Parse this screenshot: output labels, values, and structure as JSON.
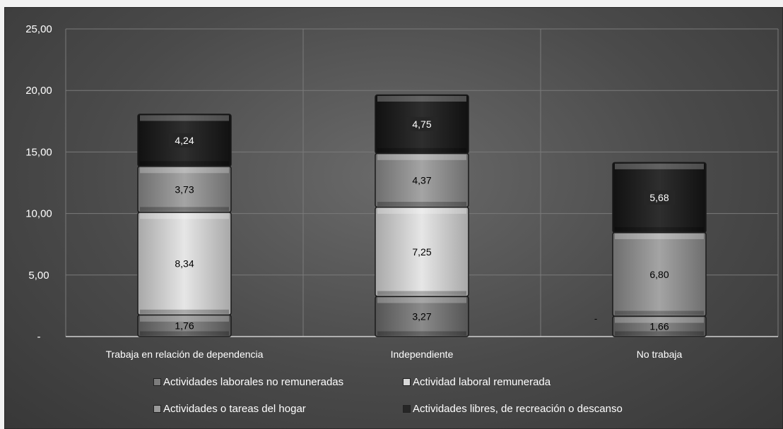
{
  "chart_data": {
    "type": "bar",
    "stacked": true,
    "categories": [
      "Trabaja en relación de dependencia",
      "Independiente",
      "No trabaja"
    ],
    "series": [
      {
        "name": "Actividades laborales no remuneradas",
        "values": [
          1.76,
          3.27,
          1.66
        ],
        "labels": [
          "1,76",
          "3,27",
          "1,66"
        ],
        "color": "#7c7c7c"
      },
      {
        "name": "Actividad laboral remunerada",
        "values": [
          8.34,
          7.25,
          0
        ],
        "labels": [
          "8,34",
          "7,25",
          ""
        ],
        "color": "#d8d8d8"
      },
      {
        "name": "Actividades o tareas del hogar",
        "values": [
          3.73,
          4.37,
          6.8
        ],
        "labels": [
          "3,73",
          "4,37",
          "6,80"
        ],
        "color": "#9a9a9a"
      },
      {
        "name": "Actividades libres, de recreación o descanso",
        "values": [
          4.24,
          4.75,
          5.68
        ],
        "labels": [
          "4,24",
          "4,75",
          "5,68"
        ],
        "color": "#262626"
      }
    ],
    "yticks": [
      0,
      5,
      10,
      15,
      20,
      25
    ],
    "ytick_labels": [
      "-",
      "5,00",
      "10,00",
      "15,00",
      "20,00",
      "25,00"
    ],
    "ylim": [
      0,
      25
    ],
    "grid": true,
    "legend_position": "bottom",
    "stray_label": "-"
  },
  "legend": {
    "items": [
      "Actividades laborales no remuneradas",
      "Actividad laboral remunerada",
      "Actividades o tareas del hogar",
      "Actividades libres, de recreación o descanso"
    ]
  }
}
